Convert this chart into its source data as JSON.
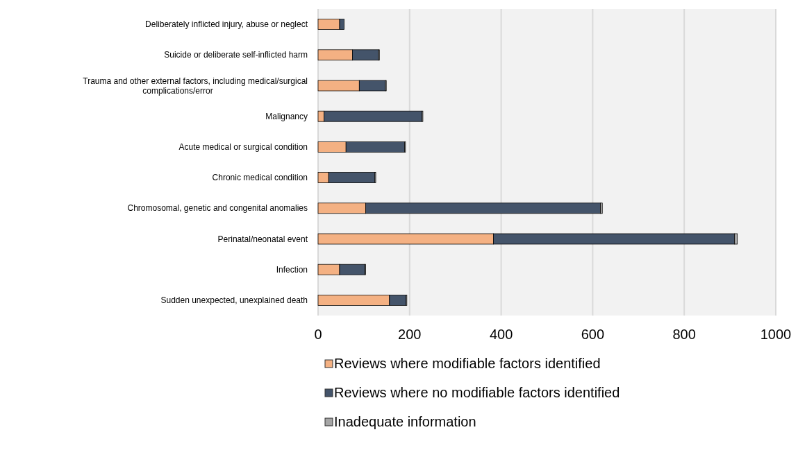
{
  "chart_data": {
    "type": "bar",
    "orientation": "horizontal",
    "stacked": true,
    "categories": [
      "Deliberately inflicted injury, abuse or neglect",
      "Suicide or deliberate self-inflicted harm",
      "Trauma and other external factors, including medical/surgical complications/error",
      "Malignancy",
      "Acute medical or surgical condition",
      "Chronic medical condition",
      "Chromosomal, genetic and congenital anomalies",
      "Perinatal/neonatal event",
      "Infection",
      "Sudden unexpected, unexplained death"
    ],
    "series": [
      {
        "name": "Reviews where modifiable factors identified",
        "color": "#f4b183",
        "values": [
          47,
          75,
          90,
          13,
          61,
          23,
          104,
          383,
          47,
          156
        ]
      },
      {
        "name": "Reviews where no modifiable factors identified",
        "color": "#44546a",
        "values": [
          10,
          57,
          57,
          214,
          128,
          101,
          513,
          527,
          55,
          36
        ]
      },
      {
        "name": "Inadequate information",
        "color": "#a6a6a6",
        "values": [
          null,
          2,
          2,
          2,
          2,
          2,
          4,
          6,
          2,
          2
        ]
      }
    ],
    "xlim": [
      0,
      1000
    ],
    "xticks": [
      0,
      200,
      400,
      600,
      800,
      1000
    ],
    "grid": "x",
    "legend": "bottom"
  }
}
